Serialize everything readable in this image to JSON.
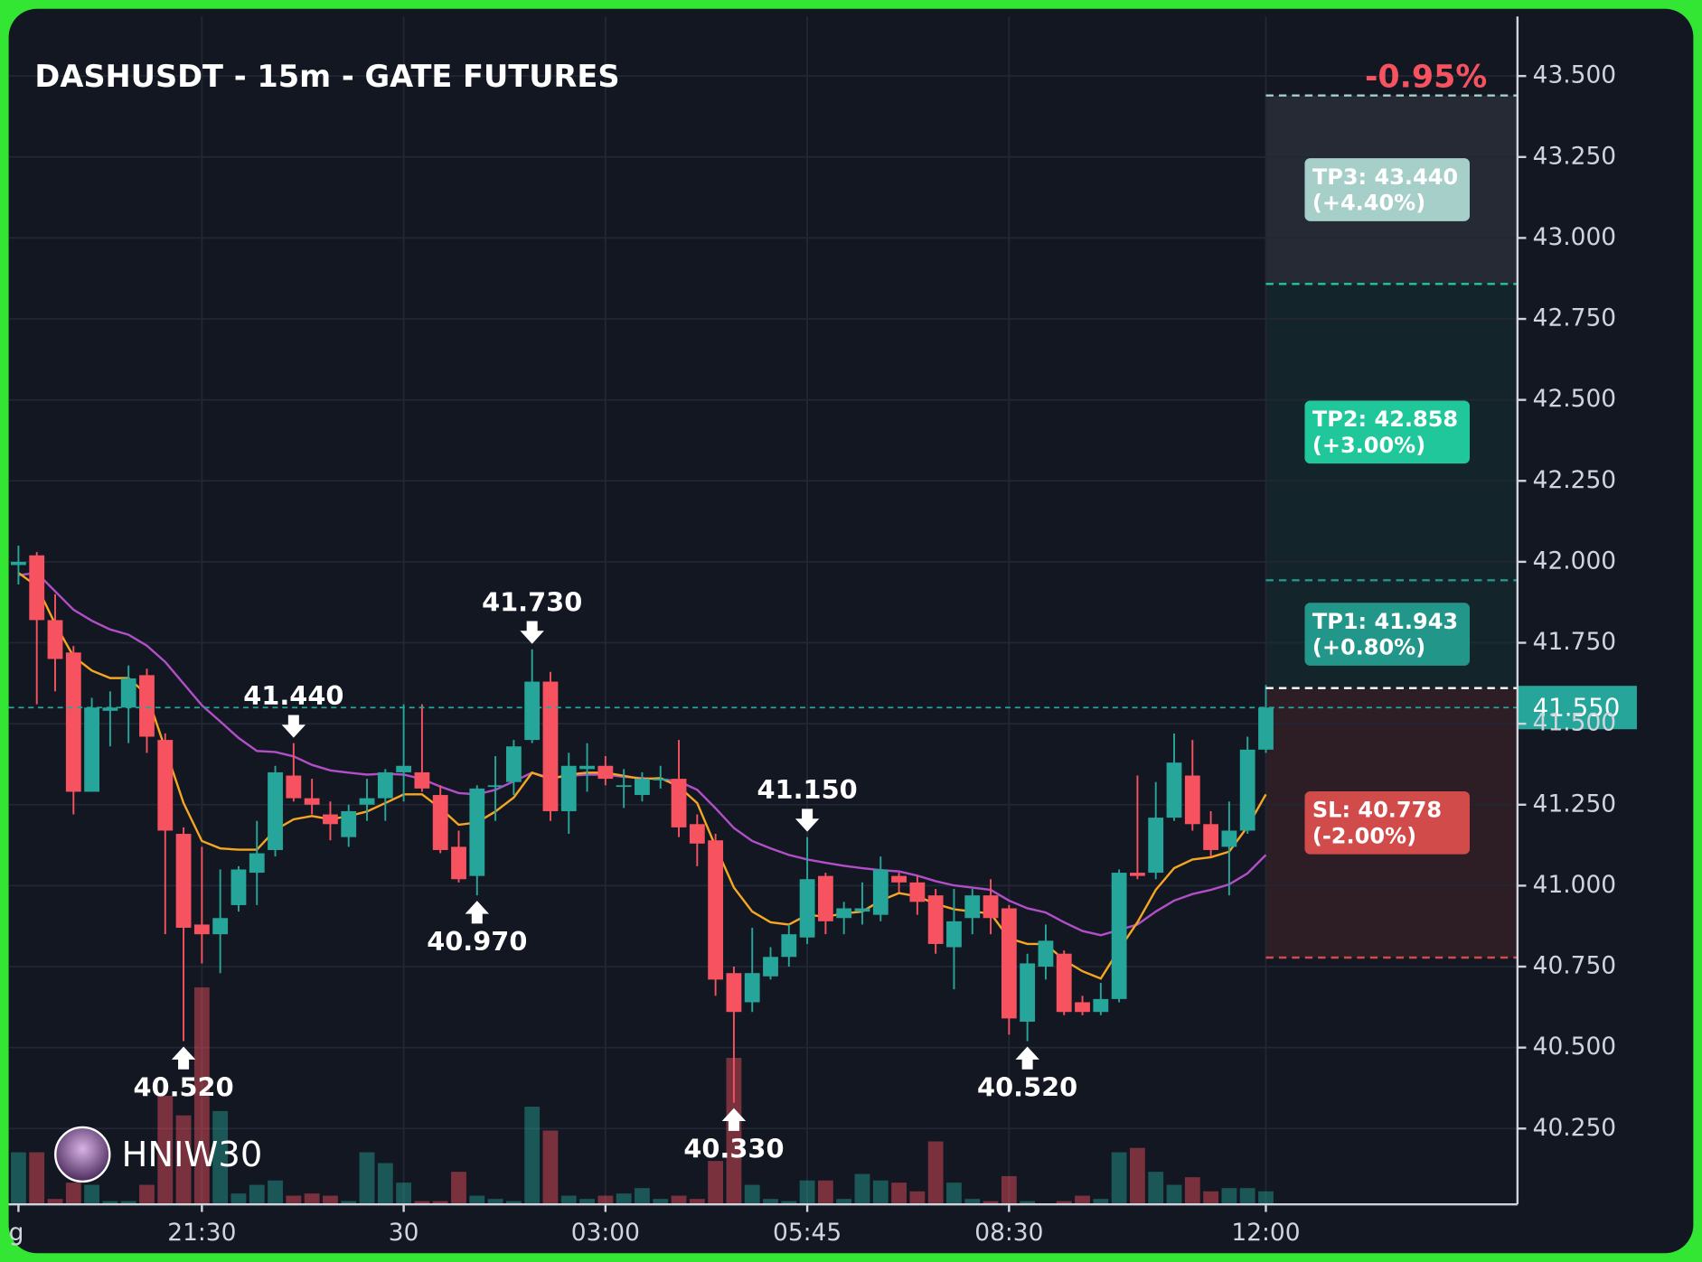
{
  "chart_data": {
    "type": "candlestick",
    "title": "DASHUSDT - 15m - GATE FUTURES",
    "change_label": "-0.95%",
    "watermark": "HNIW30",
    "categories": [
      "g",
      null,
      null,
      null,
      null,
      null,
      null,
      null,
      null,
      null,
      "21:30",
      null,
      null,
      null,
      null,
      null,
      null,
      null,
      null,
      null,
      null,
      "30",
      null,
      null,
      null,
      null,
      null,
      null,
      null,
      null,
      null,
      null,
      "03:00",
      null,
      null,
      null,
      null,
      null,
      null,
      null,
      null,
      null,
      null,
      "05:45",
      null,
      null,
      null,
      null,
      null,
      null,
      null,
      null,
      null,
      null,
      "08:30",
      null,
      null,
      null,
      null,
      null,
      null,
      null,
      null,
      null,
      null,
      null,
      null,
      null,
      "12:00"
    ],
    "open": [
      41.99,
      42.02,
      41.82,
      41.72,
      41.29,
      41.54,
      41.55,
      41.65,
      41.45,
      41.16,
      40.88,
      40.85,
      40.94,
      41.04,
      41.11,
      41.34,
      41.27,
      41.22,
      41.15,
      41.25,
      41.27,
      41.35,
      41.35,
      41.28,
      41.12,
      41.03,
      41.31,
      41.32,
      41.45,
      41.63,
      41.23,
      41.36,
      41.37,
      41.31,
      41.28,
      41.33,
      41.33,
      41.19,
      41.14,
      40.73,
      40.64,
      40.72,
      40.78,
      40.84,
      41.03,
      40.9,
      40.92,
      40.91,
      41.03,
      41.01,
      40.97,
      40.81,
      40.9,
      40.97,
      40.93,
      40.58,
      40.75,
      40.79,
      40.64,
      40.61,
      40.65,
      41.04,
      41.04,
      41.21,
      41.34,
      41.19,
      41.12,
      41.17,
      41.42
    ],
    "high": [
      42.05,
      42.03,
      41.9,
      41.74,
      41.58,
      41.6,
      41.68,
      41.67,
      41.47,
      41.18,
      41.12,
      41.05,
      41.06,
      41.2,
      41.37,
      41.44,
      41.33,
      41.26,
      41.25,
      41.33,
      41.36,
      41.56,
      41.56,
      41.31,
      41.17,
      41.31,
      41.4,
      41.45,
      41.73,
      41.66,
      41.41,
      41.44,
      41.4,
      41.36,
      41.35,
      41.37,
      41.45,
      41.22,
      41.16,
      40.75,
      40.87,
      40.81,
      40.88,
      41.15,
      41.04,
      40.95,
      41.01,
      41.09,
      41.04,
      41.03,
      40.99,
      40.99,
      40.99,
      41.02,
      40.94,
      40.79,
      40.88,
      40.8,
      40.66,
      40.7,
      41.05,
      41.34,
      41.32,
      41.47,
      41.45,
      41.23,
      41.26,
      41.46,
      41.62
    ],
    "low": [
      41.93,
      41.56,
      41.6,
      41.22,
      41.29,
      41.43,
      41.44,
      41.41,
      40.85,
      40.52,
      40.76,
      40.73,
      40.92,
      40.94,
      41.09,
      41.26,
      41.22,
      41.14,
      41.12,
      41.2,
      41.2,
      41.26,
      41.29,
      41.1,
      41.01,
      40.97,
      41.2,
      41.28,
      41.44,
      41.2,
      41.16,
      41.29,
      41.31,
      41.24,
      41.26,
      41.3,
      41.15,
      41.06,
      40.66,
      40.33,
      40.61,
      40.71,
      40.75,
      40.82,
      40.85,
      40.85,
      40.88,
      40.89,
      40.98,
      40.91,
      40.79,
      40.68,
      40.85,
      40.85,
      40.54,
      40.52,
      40.71,
      40.6,
      40.6,
      40.6,
      40.64,
      41.02,
      41.02,
      41.2,
      41.17,
      41.09,
      40.97,
      41.16,
      41.41
    ],
    "close": [
      42.0,
      41.82,
      41.7,
      41.29,
      41.55,
      41.55,
      41.64,
      41.46,
      41.17,
      40.87,
      40.85,
      40.9,
      41.05,
      41.1,
      41.35,
      41.27,
      41.25,
      41.19,
      41.23,
      41.27,
      41.35,
      41.37,
      41.3,
      41.11,
      41.02,
      41.3,
      41.31,
      41.43,
      41.63,
      41.23,
      41.37,
      41.37,
      41.33,
      41.31,
      41.33,
      41.33,
      41.18,
      41.13,
      40.71,
      40.61,
      40.73,
      40.78,
      40.85,
      41.02,
      40.89,
      40.93,
      40.93,
      41.05,
      41.01,
      40.95,
      40.82,
      40.89,
      40.97,
      40.9,
      40.59,
      40.76,
      40.83,
      40.61,
      40.61,
      40.65,
      41.04,
      41.03,
      41.21,
      41.38,
      41.19,
      41.11,
      41.17,
      41.42,
      41.55
    ],
    "volume": [
      48,
      48,
      5,
      20,
      18,
      3,
      3,
      18,
      100,
      82,
      200,
      86,
      10,
      18,
      22,
      8,
      10,
      8,
      3,
      48,
      38,
      20,
      3,
      3,
      30,
      8,
      5,
      3,
      90,
      68,
      8,
      5,
      8,
      10,
      15,
      5,
      8,
      5,
      40,
      135,
      18,
      5,
      3,
      22,
      22,
      5,
      28,
      22,
      20,
      12,
      58,
      20,
      5,
      3,
      26,
      3,
      0,
      3,
      8,
      5,
      48,
      52,
      30,
      18,
      25,
      12,
      15,
      15,
      12
    ],
    "ma_fast": {
      "color": "#f5a623",
      "values": [
        41.966,
        41.925,
        41.808,
        41.708,
        41.664,
        41.641,
        41.641,
        41.59,
        41.423,
        41.255,
        41.138,
        41.115,
        41.111,
        41.111,
        41.172,
        41.205,
        41.215,
        41.205,
        41.215,
        41.229,
        41.255,
        41.282,
        41.282,
        41.239,
        41.188,
        41.195,
        41.229,
        41.272,
        41.349,
        41.329,
        41.343,
        41.349,
        41.349,
        41.339,
        41.329,
        41.332,
        41.306,
        41.255,
        41.121,
        40.994,
        40.92,
        40.887,
        40.88,
        40.91,
        40.904,
        40.914,
        40.92,
        40.954,
        40.977,
        40.967,
        40.944,
        40.927,
        40.92,
        40.914,
        40.837,
        40.82,
        40.82,
        40.77,
        40.736,
        40.713,
        40.803,
        40.887,
        40.987,
        41.054,
        41.081,
        41.088,
        41.105,
        41.182,
        41.282
      ]
    },
    "ma_slow": {
      "color": "#b04fc7",
      "values": [
        41.959,
        41.966,
        41.909,
        41.852,
        41.818,
        41.791,
        41.775,
        41.741,
        41.691,
        41.624,
        41.557,
        41.507,
        41.456,
        41.416,
        41.413,
        41.399,
        41.373,
        41.356,
        41.349,
        41.343,
        41.346,
        41.343,
        41.329,
        41.306,
        41.286,
        41.282,
        41.296,
        41.322,
        41.349,
        41.332,
        41.339,
        41.343,
        41.343,
        41.336,
        41.332,
        41.329,
        41.322,
        41.296,
        41.239,
        41.178,
        41.138,
        41.115,
        41.095,
        41.081,
        41.071,
        41.061,
        41.054,
        41.048,
        41.044,
        41.031,
        41.014,
        41.001,
        40.994,
        40.987,
        40.954,
        40.93,
        40.917,
        40.887,
        40.86,
        40.847,
        40.863,
        40.88,
        40.92,
        40.954,
        40.974,
        40.987,
        41.004,
        41.038,
        41.095
      ]
    },
    "up_color": "#26a69a",
    "down_color": "#f6525f",
    "ylim": [
      40.016,
      43.684
    ],
    "yticks": [
      {
        "value": 40.25,
        "label": "40.250"
      },
      {
        "value": 40.5,
        "label": "40.500"
      },
      {
        "value": 40.75,
        "label": "40.750"
      },
      {
        "value": 41,
        "label": "41.000"
      },
      {
        "value": 41.25,
        "label": "41.250"
      },
      {
        "value": 41.5,
        "label": "41.500"
      },
      {
        "value": 41.75,
        "label": "41.750"
      },
      {
        "value": 42,
        "label": "42.000"
      },
      {
        "value": 42.25,
        "label": "42.250"
      },
      {
        "value": 42.5,
        "label": "42.500"
      },
      {
        "value": 42.75,
        "label": "42.750"
      },
      {
        "value": 43,
        "label": "43.000"
      },
      {
        "value": 43.25,
        "label": "43.250"
      },
      {
        "value": 43.5,
        "label": "43.500"
      }
    ],
    "grid": true,
    "last_price": {
      "value": 41.55,
      "label": "41.550"
    },
    "highs": [
      {
        "value": 41.44,
        "label": "41.440"
      },
      {
        "value": 41.73,
        "label": "41.730"
      },
      {
        "value": 41.15,
        "label": "41.150"
      }
    ],
    "lows": [
      {
        "value": 40.52,
        "label": "40.520"
      },
      {
        "value": 40.97,
        "label": "40.970"
      },
      {
        "value": 40.33,
        "label": "40.330"
      },
      {
        "value": 40.52,
        "label": "40.520"
      }
    ],
    "trade": {
      "entry": 41.61,
      "targets": [
        {
          "label": "TP3: 43.440",
          "pct": "(+4.40%)",
          "value": 43.44,
          "color": "#a6cfca",
          "zone_color": "#252a34"
        },
        {
          "label": "TP2: 42.858",
          "pct": "(+3.00%)",
          "value": 42.858,
          "color": "#1fc79a",
          "zone_color": "#13252b"
        },
        {
          "label": "TP1: 41.943",
          "pct": "(+0.80%)",
          "value": 41.943,
          "color": "#23968a",
          "zone_color": "#13252b"
        }
      ],
      "stop": {
        "label": "SL: 40.778",
        "pct": "(-2.00%)",
        "value": 40.778,
        "color": "#d24b4b",
        "zone_color": "#2d1d25"
      }
    }
  }
}
